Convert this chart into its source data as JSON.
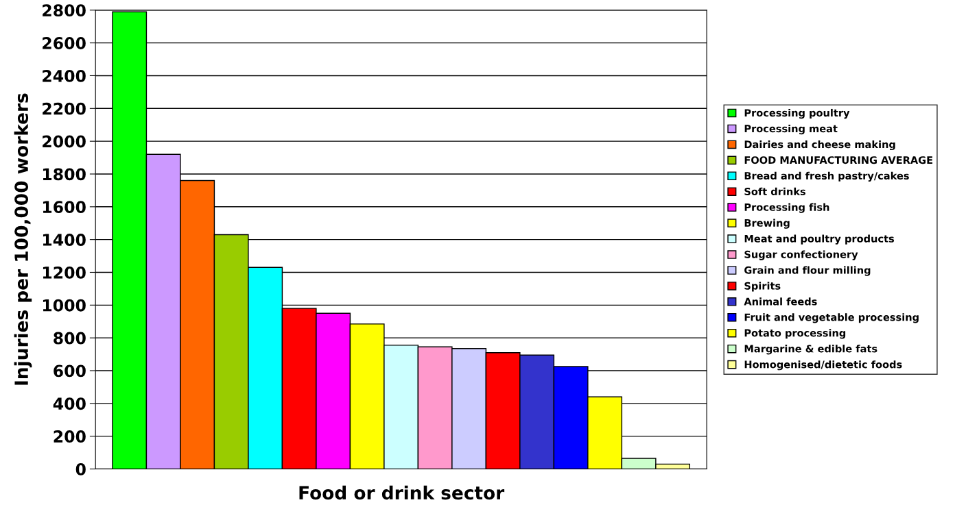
{
  "chart_data": {
    "type": "bar",
    "xlabel": "Food or drink sector",
    "ylabel": "Injuries per 100,000 workers",
    "categories": [
      null,
      null,
      null,
      null,
      null,
      null,
      null,
      null,
      null,
      null,
      null,
      null,
      null,
      null,
      null,
      null,
      null
    ],
    "series": [
      {
        "name": "Processing poultry",
        "color": "#00ff00",
        "values": [
          2790,
          null,
          null,
          null,
          null,
          null,
          null,
          null,
          null,
          null,
          null,
          null,
          null,
          null,
          null,
          null,
          null
        ]
      },
      {
        "name": "Processing meat",
        "color": "#cc99ff",
        "values": [
          null,
          1920,
          null,
          null,
          null,
          null,
          null,
          null,
          null,
          null,
          null,
          null,
          null,
          null,
          null,
          null,
          null
        ]
      },
      {
        "name": "Dairies and cheese making",
        "color": "#ff6600",
        "values": [
          null,
          null,
          1760,
          null,
          null,
          null,
          null,
          null,
          null,
          null,
          null,
          null,
          null,
          null,
          null,
          null,
          null
        ]
      },
      {
        "name": "FOOD MANUFACTURING AVERAGE",
        "color": "#99cc00",
        "values": [
          null,
          null,
          null,
          1430,
          null,
          null,
          null,
          null,
          null,
          null,
          null,
          null,
          null,
          null,
          null,
          null,
          null
        ]
      },
      {
        "name": "Bread and fresh pastry/cakes",
        "color": "#00ffff",
        "values": [
          null,
          null,
          null,
          null,
          1230,
          null,
          null,
          null,
          null,
          null,
          null,
          null,
          null,
          null,
          null,
          null,
          null
        ]
      },
      {
        "name": "Soft drinks",
        "color": "#ff0000",
        "values": [
          null,
          null,
          null,
          null,
          null,
          980,
          null,
          null,
          null,
          null,
          null,
          null,
          null,
          null,
          null,
          null,
          null
        ]
      },
      {
        "name": "Processing fish",
        "color": "#ff00ff",
        "values": [
          null,
          null,
          null,
          null,
          null,
          null,
          950,
          null,
          null,
          null,
          null,
          null,
          null,
          null,
          null,
          null,
          null
        ]
      },
      {
        "name": "Brewing",
        "color": "#ffff00",
        "values": [
          null,
          null,
          null,
          null,
          null,
          null,
          null,
          885,
          null,
          null,
          null,
          null,
          null,
          null,
          null,
          null,
          null
        ]
      },
      {
        "name": "Meat and poultry products",
        "color": "#ccffff",
        "values": [
          null,
          null,
          null,
          null,
          null,
          null,
          null,
          null,
          755,
          null,
          null,
          null,
          null,
          null,
          null,
          null,
          null
        ]
      },
      {
        "name": "Sugar confectionery",
        "color": "#ff99cc",
        "values": [
          null,
          null,
          null,
          null,
          null,
          null,
          null,
          null,
          null,
          745,
          null,
          null,
          null,
          null,
          null,
          null,
          null
        ]
      },
      {
        "name": "Grain and flour milling",
        "color": "#ccccff",
        "values": [
          null,
          null,
          null,
          null,
          null,
          null,
          null,
          null,
          null,
          null,
          735,
          null,
          null,
          null,
          null,
          null,
          null
        ]
      },
      {
        "name": "Spirits",
        "color": "#ff0000",
        "values": [
          null,
          null,
          null,
          null,
          null,
          null,
          null,
          null,
          null,
          null,
          null,
          710,
          null,
          null,
          null,
          null,
          null
        ]
      },
      {
        "name": "Animal feeds",
        "color": "#3333cc",
        "values": [
          null,
          null,
          null,
          null,
          null,
          null,
          null,
          null,
          null,
          null,
          null,
          null,
          695,
          null,
          null,
          null,
          null
        ]
      },
      {
        "name": "Fruit and vegetable processing",
        "color": "#0000ff",
        "values": [
          null,
          null,
          null,
          null,
          null,
          null,
          null,
          null,
          null,
          null,
          null,
          null,
          null,
          625,
          null,
          null,
          null
        ]
      },
      {
        "name": "Potato processing",
        "color": "#ffff00",
        "values": [
          null,
          null,
          null,
          null,
          null,
          null,
          null,
          null,
          null,
          null,
          null,
          null,
          null,
          null,
          440,
          null,
          null
        ]
      },
      {
        "name": "Margarine & edible fats",
        "color": "#ccffcc",
        "values": [
          null,
          null,
          null,
          null,
          null,
          null,
          null,
          null,
          null,
          null,
          null,
          null,
          null,
          null,
          null,
          65,
          null
        ]
      },
      {
        "name": "Homogenised/dietetic foods",
        "color": "#ffff99",
        "values": [
          null,
          null,
          null,
          null,
          null,
          null,
          null,
          null,
          null,
          null,
          null,
          null,
          null,
          null,
          null,
          null,
          30
        ]
      }
    ],
    "ylim": [
      0,
      2800
    ],
    "yticks": [
      0,
      200,
      400,
      600,
      800,
      1000,
      1200,
      1400,
      1600,
      1800,
      2000,
      2200,
      2400,
      2600,
      2800
    ],
    "grid": "y",
    "legend": "right"
  }
}
